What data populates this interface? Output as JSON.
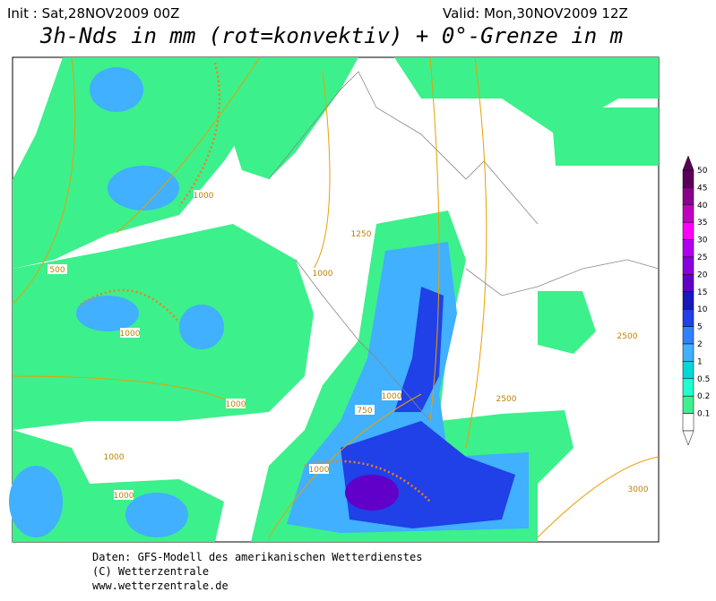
{
  "header": {
    "init": "Init : Sat,28NOV2009 00Z",
    "valid": "Valid: Mon,30NOV2009 12Z",
    "title": "3h-Nds in mm (rot=konvektiv) + 0°-Grenze in m"
  },
  "colorbar": {
    "levels": [
      {
        "label": "50",
        "color": "#5a005a"
      },
      {
        "label": "45",
        "color": "#8a008a"
      },
      {
        "label": "40",
        "color": "#c000c0"
      },
      {
        "label": "35",
        "color": "#ff00ff"
      },
      {
        "label": "30",
        "color": "#b000f0"
      },
      {
        "label": "25",
        "color": "#8a00e0"
      },
      {
        "label": "20",
        "color": "#6000c8"
      },
      {
        "label": "15",
        "color": "#1818c0"
      },
      {
        "label": "10",
        "color": "#2040e8"
      },
      {
        "label": "5",
        "color": "#3080ff"
      },
      {
        "label": "2",
        "color": "#40b0ff"
      },
      {
        "label": "1",
        "color": "#00d8d8"
      },
      {
        "label": "0.5",
        "color": "#20ffd0"
      },
      {
        "label": "0.2",
        "color": "#40f090"
      },
      {
        "label": "0.1",
        "color": "#ffffff"
      }
    ]
  },
  "map": {
    "contour_labels": [
      "1000",
      "1250",
      "1000",
      "500",
      "1000",
      "1000",
      "1000",
      "1000",
      "750",
      "1000",
      "2500",
      "2500",
      "3000",
      "1000"
    ]
  },
  "footer": {
    "lines": [
      "Daten: GFS-Modell des amerikanischen Wetterdienstes",
      "(C) Wetterzentrale",
      "www.wetterzentrale.de"
    ]
  }
}
